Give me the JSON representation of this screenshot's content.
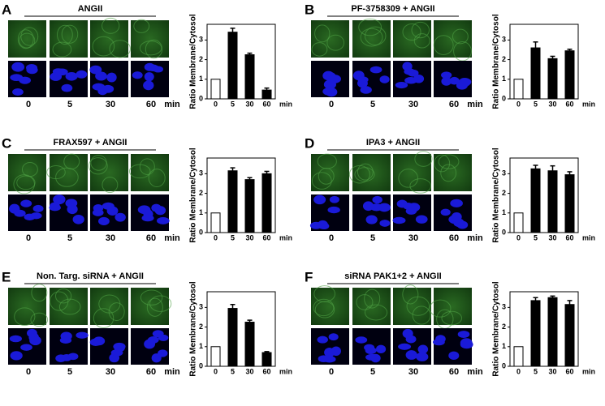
{
  "panels": [
    {
      "letter": "A",
      "condition": "ANGII",
      "times": [
        "0",
        "5",
        "30",
        "60"
      ],
      "time_unit": "min"
    },
    {
      "letter": "B",
      "condition": "PF-3758309 + ANGII",
      "times": [
        "0",
        "5",
        "30",
        "60"
      ],
      "time_unit": "min"
    },
    {
      "letter": "C",
      "condition": "FRAX597 + ANGII",
      "times": [
        "0",
        "5",
        "30",
        "60"
      ],
      "time_unit": "min"
    },
    {
      "letter": "D",
      "condition": "IPA3 + ANGII",
      "times": [
        "0",
        "5",
        "30",
        "60"
      ],
      "time_unit": "min"
    },
    {
      "letter": "E",
      "condition": "Non. Targ. siRNA + ANGII",
      "times": [
        "0",
        "5",
        "30",
        "60"
      ],
      "time_unit": "min"
    },
    {
      "letter": "F",
      "condition": "siRNA PAK1+2 + ANGII",
      "times": [
        "0",
        "5",
        "30",
        "60"
      ],
      "time_unit": "min"
    }
  ],
  "chart_data": [
    {
      "type": "bar",
      "ylabel": "Ratio Membrane/Cytosol",
      "xlabel": "min",
      "categories": [
        "0",
        "5",
        "30",
        "60"
      ],
      "values": [
        1,
        3.4,
        2.25,
        0.45
      ],
      "errors": [
        0,
        0.2,
        0.08,
        0.1
      ],
      "colors": [
        "#ffffff",
        "#000000",
        "#000000",
        "#000000"
      ],
      "ylim": [
        0,
        3.8
      ],
      "yticks": [
        0,
        1,
        2,
        3
      ]
    },
    {
      "type": "bar",
      "ylabel": "Ratio Membrane/Cytosol",
      "xlabel": "min",
      "categories": [
        "0",
        "5",
        "30",
        "60"
      ],
      "values": [
        1,
        2.6,
        2.05,
        2.45
      ],
      "errors": [
        0,
        0.3,
        0.12,
        0.08
      ],
      "colors": [
        "#ffffff",
        "#000000",
        "#000000",
        "#000000"
      ],
      "ylim": [
        0,
        3.8
      ],
      "yticks": [
        0,
        1,
        2,
        3
      ]
    },
    {
      "type": "bar",
      "ylabel": "Ratio Membrane/Cytosol",
      "xlabel": "min",
      "categories": [
        "0",
        "5",
        "30",
        "60"
      ],
      "values": [
        1,
        3.15,
        2.7,
        3.0
      ],
      "errors": [
        0,
        0.15,
        0.1,
        0.12
      ],
      "colors": [
        "#ffffff",
        "#000000",
        "#000000",
        "#000000"
      ],
      "ylim": [
        0,
        3.8
      ],
      "yticks": [
        0,
        1,
        2,
        3
      ]
    },
    {
      "type": "bar",
      "ylabel": "Ratio Membrane/Cytosol",
      "xlabel": "min",
      "categories": [
        "0",
        "5",
        "30",
        "60"
      ],
      "values": [
        1,
        3.25,
        3.15,
        2.95
      ],
      "errors": [
        0,
        0.18,
        0.25,
        0.15
      ],
      "colors": [
        "#ffffff",
        "#000000",
        "#000000",
        "#000000"
      ],
      "ylim": [
        0,
        3.8
      ],
      "yticks": [
        0,
        1,
        2,
        3
      ]
    },
    {
      "type": "bar",
      "ylabel": "Ratio Membrane/Cytosol",
      "xlabel": "min",
      "categories": [
        "0",
        "5",
        "30",
        "60"
      ],
      "values": [
        1,
        2.95,
        2.25,
        0.7
      ],
      "errors": [
        0,
        0.2,
        0.1,
        0.05
      ],
      "colors": [
        "#ffffff",
        "#000000",
        "#000000",
        "#000000"
      ],
      "ylim": [
        0,
        3.8
      ],
      "yticks": [
        0,
        1,
        2,
        3
      ]
    },
    {
      "type": "bar",
      "ylabel": "Ratio Membrane/Cytosol",
      "xlabel": "min",
      "categories": [
        "0",
        "5",
        "30",
        "60"
      ],
      "values": [
        1,
        3.35,
        3.5,
        3.15
      ],
      "errors": [
        0,
        0.15,
        0.08,
        0.2
      ],
      "colors": [
        "#ffffff",
        "#000000",
        "#000000",
        "#000000"
      ],
      "ylim": [
        0,
        3.8
      ],
      "yticks": [
        0,
        1,
        2,
        3
      ]
    }
  ]
}
